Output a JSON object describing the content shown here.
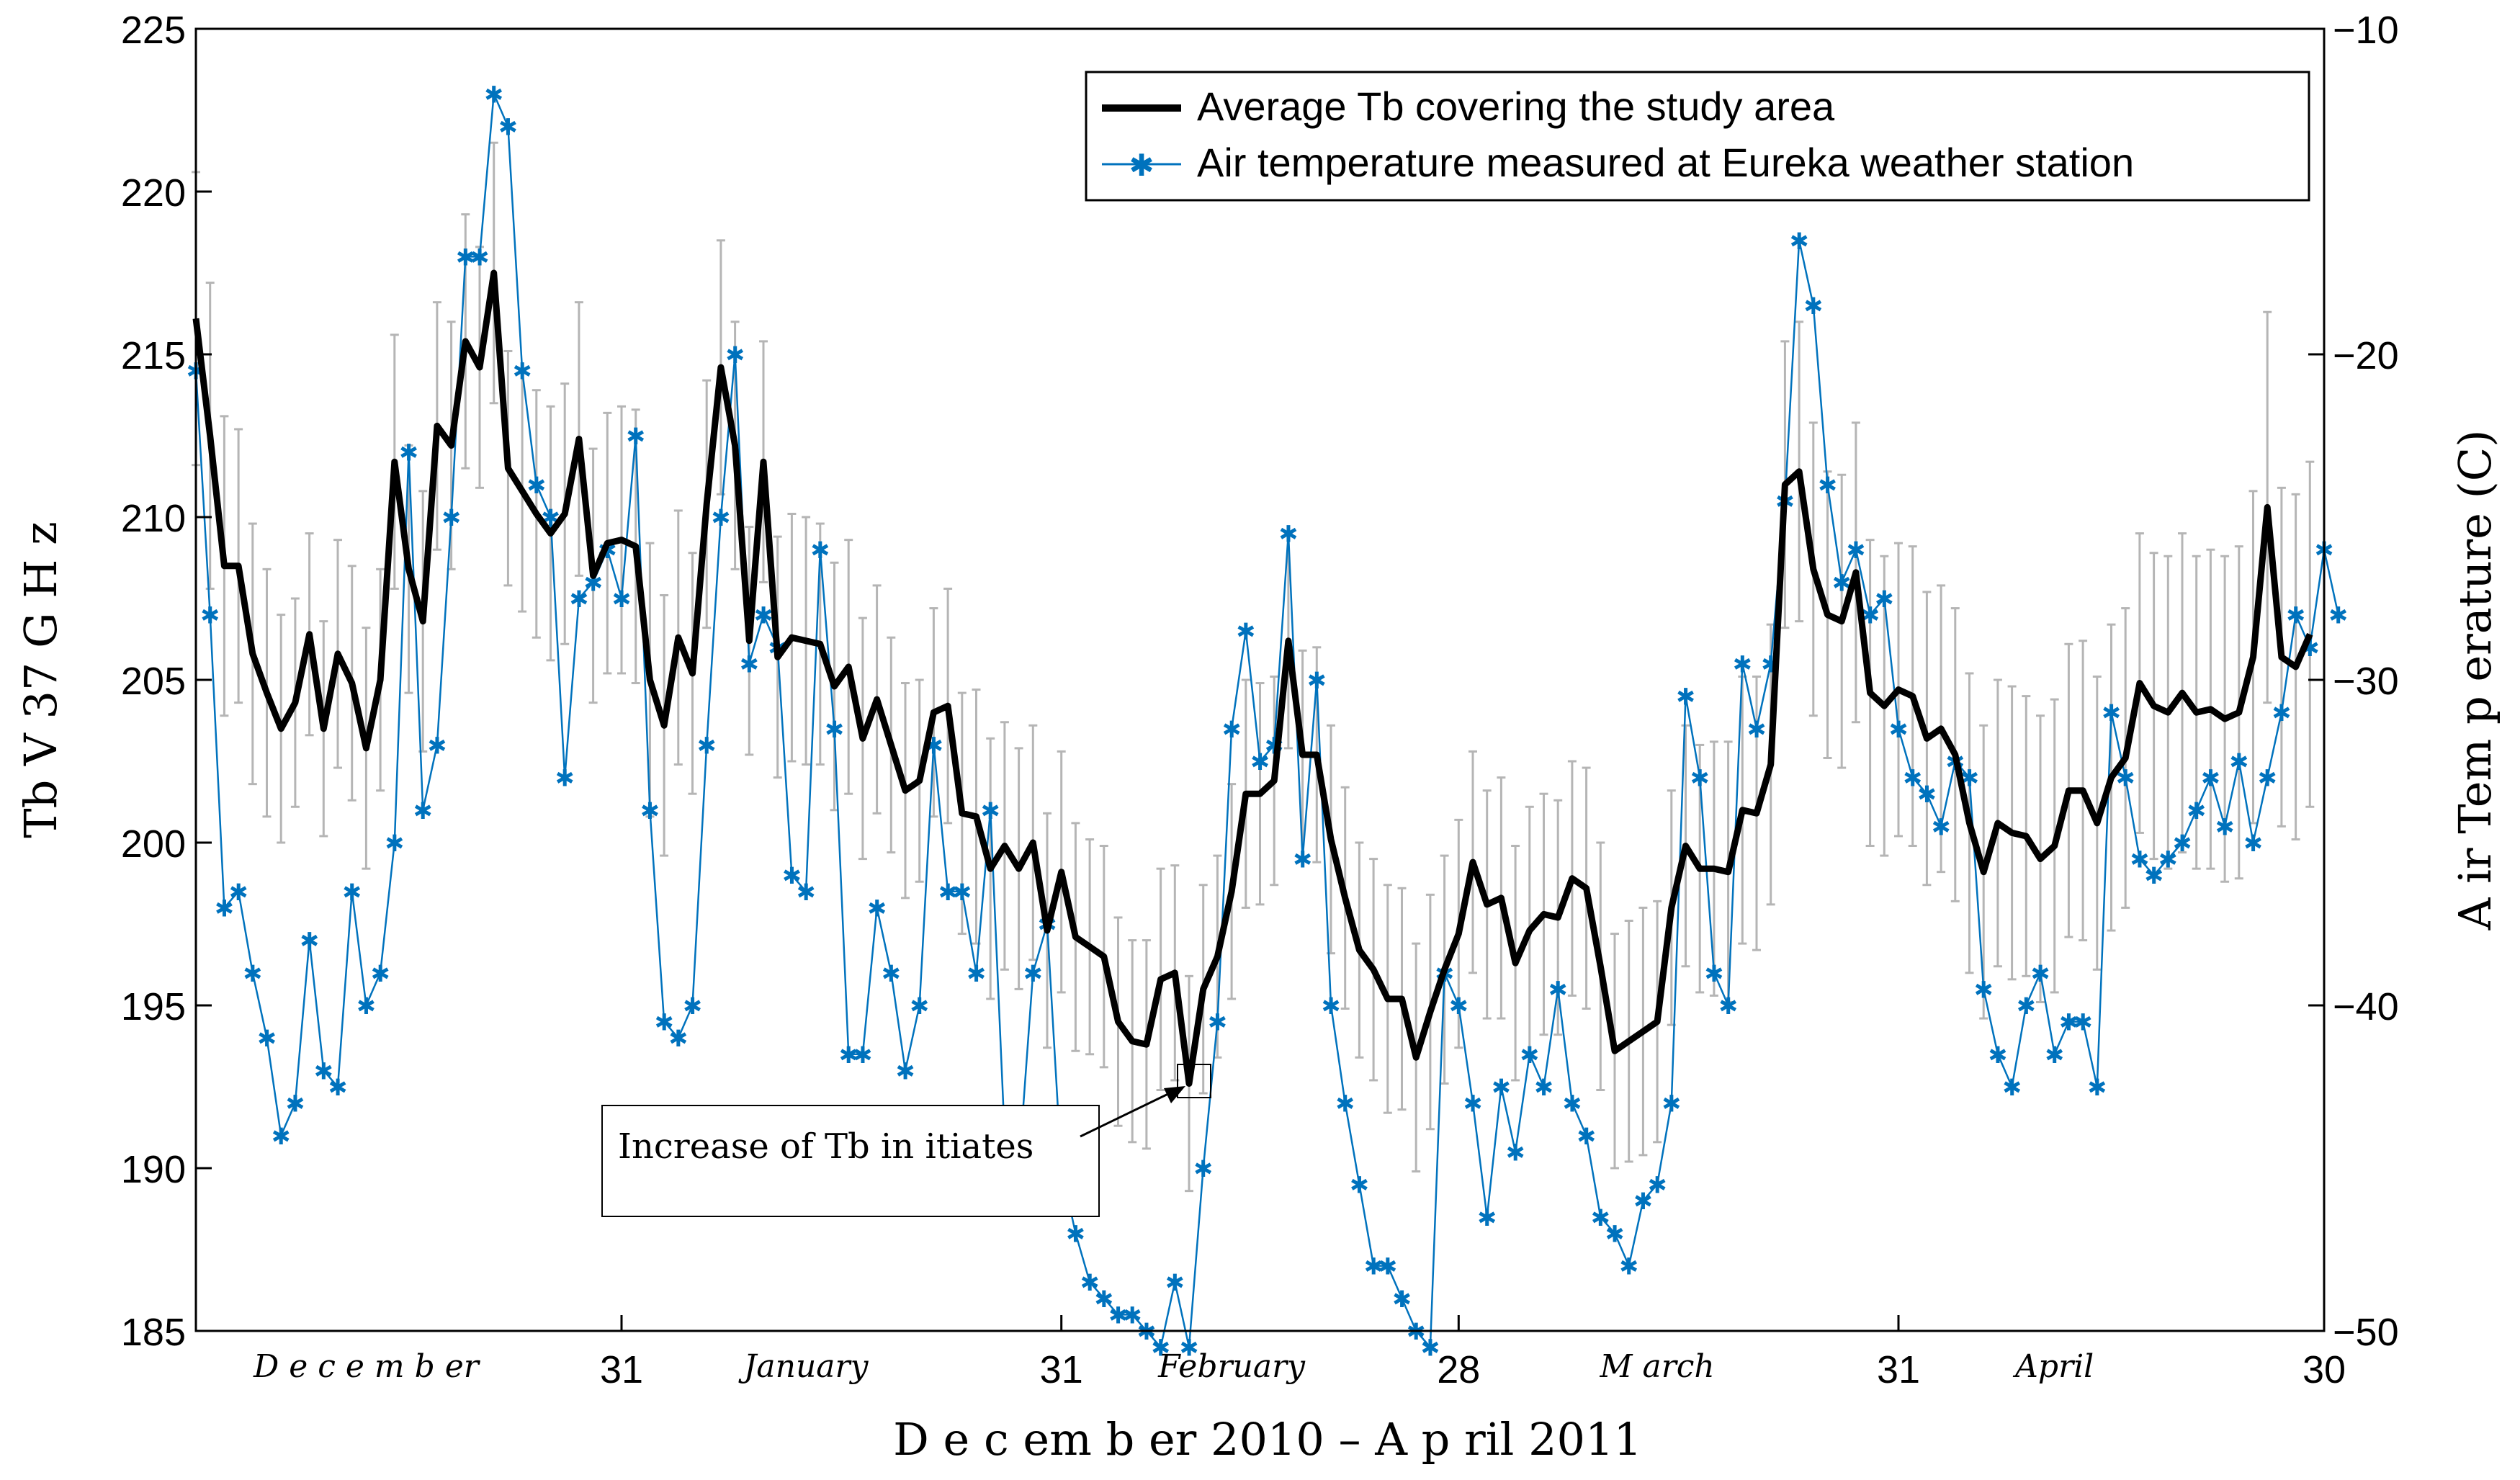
{
  "chart_data": {
    "type": "line",
    "xlabel": "D e c em b er 2010  – A p ril 2011",
    "ylabel_left": "Tb  V  37  G H z",
    "ylabel_right": "A ir Tem p erature (C)",
    "ylim_left": [
      185,
      225
    ],
    "ylim_right": [
      -50,
      -10
    ],
    "yticks_left": [
      "185",
      "190",
      "195",
      "200",
      "205",
      "210",
      "215",
      "220",
      "225"
    ],
    "yticks_right": [
      "−50",
      "−40",
      "−30",
      "−20",
      "−10"
    ],
    "xlim_days": [
      1,
      151
    ],
    "xticks": [
      {
        "day": 31,
        "label": "31"
      },
      {
        "day": 62,
        "label": "31"
      },
      {
        "day": 90,
        "label": "28"
      },
      {
        "day": 121,
        "label": "31"
      },
      {
        "day": 151,
        "label": "30"
      }
    ],
    "month_labels": [
      {
        "day": 13,
        "label": "D e c e m  b er"
      },
      {
        "day": 44,
        "label": "January"
      },
      {
        "day": 74,
        "label": "February"
      },
      {
        "day": 104,
        "label": "M  arch"
      },
      {
        "day": 132,
        "label": "April"
      }
    ],
    "legend": [
      {
        "label": "Average Tb covering the study area",
        "color": "#000000",
        "marker": "none"
      },
      {
        "label": "Air temperature measured at Eureka weather station",
        "color": "#0072BD",
        "marker": "*"
      }
    ],
    "annotation": {
      "text": "Increase of Tb  in itiates",
      "points_to_day": 70,
      "points_to_value": 192.6
    },
    "series": [
      {
        "name": "Average Tb covering the study area",
        "axis": "left",
        "color": "#000000",
        "values": [
          216.1,
          212.5,
          208.5,
          208.5,
          205.8,
          204.6,
          203.5,
          204.3,
          206.4,
          203.5,
          205.8,
          204.9,
          202.9,
          205,
          211.7,
          208.4,
          206.8,
          212.8,
          212.2,
          215.4,
          214.6,
          217.5,
          211.5,
          210.8,
          210.1,
          209.5,
          210.1,
          212.4,
          208.2,
          209.2,
          209.3,
          209.1,
          205,
          203.6,
          206.3,
          205.2,
          210.4,
          214.6,
          212.2,
          206.2,
          211.7,
          205.7,
          206.3,
          206.2,
          206.1,
          204.8,
          205.4,
          203.2,
          204.4,
          203,
          201.6,
          201.9,
          204,
          204.2,
          200.9,
          200.8,
          199.2,
          199.9,
          199.2,
          200,
          197.3,
          199.1,
          197.1,
          196.8,
          196.5,
          194.5,
          193.9,
          193.8,
          195.8,
          196,
          192.6,
          195.5,
          196.5,
          198.5,
          201.5,
          201.5,
          201.9,
          206.2,
          202.7,
          202.7,
          200.1,
          198.3,
          196.7,
          196.1,
          195.2,
          195.2,
          193.4,
          194.8,
          196.1,
          197.2,
          199.4,
          198.1,
          198.3,
          196.3,
          197.3,
          197.8,
          197.7,
          198.9,
          198.6,
          196.2,
          193.6,
          193.9,
          194.2,
          194.5,
          198,
          199.9,
          199.2,
          199.2,
          199.1,
          201,
          200.9,
          202.4,
          211,
          211.4,
          208.4,
          207,
          206.8,
          208.3,
          204.6,
          204.2,
          204.7,
          204.5,
          203.2,
          203.5,
          202.7,
          200.6,
          199.1,
          200.6,
          200.3,
          200.2,
          199.5,
          199.9,
          201.6,
          201.6,
          200.6,
          202,
          202.6,
          204.9,
          204.2,
          204,
          204.6,
          204,
          204.1,
          203.8,
          204,
          205.7,
          210.3,
          205.7,
          205.4,
          206.4
        ]
      },
      {
        "name": "Air temperature measured at Eureka weather station",
        "axis": "right",
        "color": "#0072BD",
        "values": [
          -20.5,
          -28,
          -37,
          -36.5,
          -39,
          -41,
          -44,
          -43,
          -38,
          -42,
          -42.5,
          -36.5,
          -40,
          -39,
          -35,
          -23,
          -34,
          -32,
          -25,
          -17,
          -17,
          -12,
          -13,
          -20.5,
          -24,
          -25,
          -33,
          -27.5,
          -27,
          -26,
          -27.5,
          -22.5,
          -34,
          -40.5,
          -41,
          -40,
          -32,
          -25,
          -20,
          -29.5,
          -28,
          -29,
          -36,
          -36.5,
          -26,
          -31.5,
          -41.5,
          -41.5,
          -37,
          -39,
          -42,
          -40,
          -32,
          -36.5,
          -36.5,
          -39,
          -34,
          -44,
          -45,
          -39,
          -37.5,
          -45,
          -47,
          -48.5,
          -49,
          -49.5,
          -49.5,
          -50,
          -50.5,
          -48.5,
          -50.5,
          -45,
          -40.5,
          -31.5,
          -28.5,
          -32.5,
          -32,
          -25.5,
          -35.5,
          -30,
          -40,
          -43,
          -45.5,
          -48,
          -48,
          -49,
          -50,
          -50.5,
          -39,
          -40,
          -43,
          -46.5,
          -42.5,
          -44.5,
          -41.5,
          -42.5,
          -39.5,
          -43,
          -44,
          -46.5,
          -47,
          -48,
          -46,
          -45.5,
          -43,
          -30.5,
          -33,
          -39,
          -40,
          -29.5,
          -31.5,
          -29.5,
          -24.5,
          -16.5,
          -18.5,
          -24,
          -27,
          -26,
          -28,
          -27.5,
          -31.5,
          -33,
          -33.5,
          -34.5,
          -32.5,
          -33,
          -39.5,
          -41.5,
          -42.5,
          -40,
          -39,
          -41.5,
          -40.5,
          -40.5,
          -42.5,
          -31,
          -33,
          -35.5,
          -36,
          -35.5,
          -35,
          -34,
          -33,
          -34.5,
          -32.5,
          -35,
          -33,
          -31,
          -28,
          -29,
          -26,
          -28
        ]
      }
    ],
    "error_bars_offset": [
      4.5,
      4.7,
      4.6,
      4.2,
      4,
      3.8,
      3.5,
      3.2,
      3.1,
      3.3,
      3.5,
      3.6,
      3.7,
      3.4,
      3.9,
      3.8,
      4,
      3.8,
      3.8,
      3.9,
      3.7,
      4,
      3.6,
      3.7,
      3.8,
      3.9,
      4,
      4.2,
      3.9,
      4,
      4.1,
      4.2,
      4.2,
      4,
      3.9,
      3.7,
      3.8,
      3.9,
      3.8,
      3.5,
      3.7,
      3.7,
      3.8,
      3.8,
      3.7,
      3.8,
      3.9,
      3.7,
      3.5,
      3.3,
      3.3,
      3.1,
      3.2,
      3.6,
      3.7,
      3.9,
      4,
      3.8,
      3.7,
      3.6,
      3.6,
      3.7,
      3.5,
      3.3,
      3.4,
      3.2,
      3.1,
      3.2,
      3.4,
      3.3,
      3.3,
      3.2,
      3.1,
      3.3,
      3.5,
      3.4,
      3.2,
      3.3,
      3.2,
      3.3,
      3.5,
      3.4,
      3.3,
      3.4,
      3.5,
      3.4,
      3.5,
      3.6,
      3.5,
      3.5,
      3.4,
      3.5,
      3.7,
      3.6,
      3.8,
      3.7,
      3.6,
      3.6,
      3.7,
      3.8,
      3.6,
      3.7,
      3.8,
      3.7,
      3.6,
      3.7,
      3.8,
      3.9,
      4,
      4.1,
      4.2,
      4.3,
      4.4,
      4.6,
      4.5,
      4.4,
      4.5,
      4.6,
      4.7,
      4.6,
      4.5,
      4.6,
      4.5,
      4.4,
      4.5,
      4.6,
      4.5,
      4.4,
      4.5,
      4.3,
      4.4,
      4.5,
      4.5,
      4.6,
      4.5,
      4.7,
      4.6,
      4.6,
      4.7,
      4.8,
      4.9,
      4.8,
      4.9,
      5,
      5.1,
      5.1,
      6,
      5.2,
      5.3,
      5.3
    ]
  }
}
